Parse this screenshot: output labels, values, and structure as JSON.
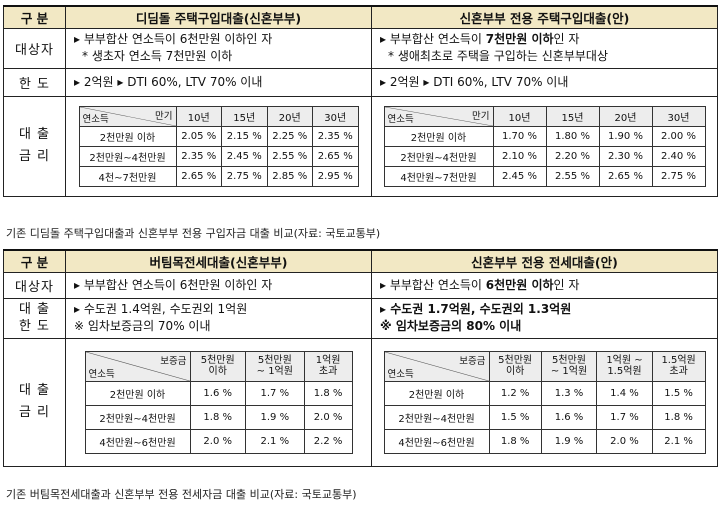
{
  "t1": {
    "gubun": "구  분",
    "col_a": "디딤돌 주택구입대출(신혼부부)",
    "col_b": "신혼부부 전용 주택구입대출(안)",
    "row_target": "대상자",
    "a_target_1": "▸ 부부합산 연소득이 6천만원 이하인 자",
    "a_target_2": "* 생초자 연소득 7천만원 이하",
    "b_target_1_pre": "▸ 부부합산 연소득이 ",
    "b_target_1_bold": "7천만원 이하",
    "b_target_1_post": "인 자",
    "b_target_2": "* 생애최초로 주택을 구입하는 신혼부부대상",
    "row_limit": "한  도",
    "a_limit": "▸ 2억원 ▸ DTI 60%, LTV 70% 이내",
    "b_limit": "▸ 2억원 ▸ DTI 60%, LTV 70% 이내",
    "row_rate_1": "대  출",
    "row_rate_2": "금  리",
    "rate_corner_top": "만기",
    "rate_corner_bottom": "연소득",
    "rate_cols": [
      "10년",
      "15년",
      "20년",
      "30년"
    ],
    "a_rates": [
      {
        "label": "2천만원 이하",
        "values": [
          "2.05 %",
          "2.15 %",
          "2.25 %",
          "2.35 %"
        ]
      },
      {
        "label": "2천만원~4천만원",
        "values": [
          "2.35 %",
          "2.45 %",
          "2.55 %",
          "2.65 %"
        ]
      },
      {
        "label": "4천~7천만원",
        "values": [
          "2.65 %",
          "2.75 %",
          "2.85 %",
          "2.95 %"
        ]
      }
    ],
    "b_rates": [
      {
        "label": "2천만원 이하",
        "values": [
          "1.70 %",
          "1.80 %",
          "1.90 %",
          "2.00 %"
        ]
      },
      {
        "label": "2천만원~4천만원",
        "values": [
          "2.10 %",
          "2.20 %",
          "2.30 %",
          "2.40 %"
        ]
      },
      {
        "label": "4천만원~7천만원",
        "values": [
          "2.45 %",
          "2.55 %",
          "2.65 %",
          "2.75 %"
        ]
      }
    ],
    "caption": "기존 디딤돌 주택구입대출과 신혼부부 전용 구입자금 대출 비교(자료: 국토교통부)"
  },
  "t2": {
    "gubun": "구  분",
    "col_a": "버팀목전세대출(신혼부부)",
    "col_b": "신혼부부 전용 전세대출(안)",
    "row_target": "대상자",
    "a_target": "▸ 부부합산 연소득이 6천만원 이하인 자",
    "b_target_pre": "▸ 부부합산 연소득이 ",
    "b_target_bold": "6천만원 이하",
    "b_target_post": "인 자",
    "row_limit_1": "대  출",
    "row_limit_2": "한  도",
    "a_limit_1": "▸ 수도권 1.4억원, 수도권외 1억원",
    "a_limit_2": "※ 임차보증금의 70% 이내",
    "b_limit_1": "▸ 수도권 1.7억원, 수도권외 1.3억원",
    "b_limit_2": "※ 임차보증금의 80% 이내",
    "row_rate_1": "대  출",
    "row_rate_2": "금  리",
    "rate_corner_top": "보증금",
    "rate_corner_bottom": "연소득",
    "a_cols": [
      [
        "5천만원",
        "이하"
      ],
      [
        "5천만원",
        "~ 1억원"
      ],
      [
        "1억원",
        "초과"
      ]
    ],
    "b_cols": [
      [
        "5천만원",
        "이하"
      ],
      [
        "5천만원",
        "~ 1억원"
      ],
      [
        "1억원 ~",
        "1.5억원"
      ],
      [
        "1.5억원",
        "초과"
      ]
    ],
    "a_rates": [
      {
        "label": "2천만원 이하",
        "values": [
          "1.6 %",
          "1.7 %",
          "1.8 %"
        ]
      },
      {
        "label": "2천만원~4천만원",
        "values": [
          "1.8 %",
          "1.9 %",
          "2.0 %"
        ]
      },
      {
        "label": "4천만원~6천만원",
        "values": [
          "2.0 %",
          "2.1 %",
          "2.2 %"
        ]
      }
    ],
    "b_rates": [
      {
        "label": "2천만원 이하",
        "values": [
          "1.2 %",
          "1.3 %",
          "1.4 %",
          "1.5 %"
        ]
      },
      {
        "label": "2천만원~4천만원",
        "values": [
          "1.5 %",
          "1.6 %",
          "1.7 %",
          "1.8 %"
        ]
      },
      {
        "label": "4천만원~6천만원",
        "values": [
          "1.8 %",
          "1.9 %",
          "2.0 %",
          "2.1 %"
        ]
      }
    ],
    "caption": "기존 버팀목전세대출과 신혼부부 전용 전세자금 대출 비교(자료: 국토교통부)"
  }
}
